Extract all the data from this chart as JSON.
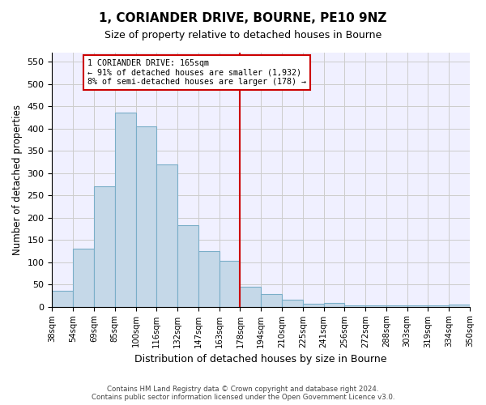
{
  "title1": "1, CORIANDER DRIVE, BOURNE, PE10 9NZ",
  "title2": "Size of property relative to detached houses in Bourne",
  "xlabel": "Distribution of detached houses by size in Bourne",
  "ylabel": "Number of detached properties",
  "footer_line1": "Contains HM Land Registry data © Crown copyright and database right 2024.",
  "footer_line2": "Contains public sector information licensed under the Open Government Licence v3.0.",
  "bar_labels": [
    "38sqm",
    "54sqm",
    "69sqm",
    "85sqm",
    "100sqm",
    "116sqm",
    "132sqm",
    "147sqm",
    "163sqm",
    "178sqm",
    "194sqm",
    "210sqm",
    "225sqm",
    "241sqm",
    "256sqm",
    "272sqm",
    "288sqm",
    "303sqm",
    "319sqm",
    "334sqm",
    "350sqm"
  ],
  "bar_values": [
    35,
    130,
    270,
    435,
    405,
    320,
    183,
    125,
    103,
    45,
    28,
    16,
    7,
    9,
    3,
    2,
    2,
    2,
    2,
    5
  ],
  "bar_color": "#c5d8e8",
  "bar_edgecolor": "#7aaec8",
  "vline_pos": 8.5,
  "vline_color": "#cc0000",
  "annotation_text": "1 CORIANDER DRIVE: 165sqm\n← 91% of detached houses are smaller (1,932)\n8% of semi-detached houses are larger (178) →",
  "annotation_box_color": "#cc0000",
  "ylim": [
    0,
    570
  ],
  "yticks": [
    0,
    50,
    100,
    150,
    200,
    250,
    300,
    350,
    400,
    450,
    500,
    550
  ],
  "grid_color": "#cccccc",
  "bg_color": "#f0f0ff"
}
